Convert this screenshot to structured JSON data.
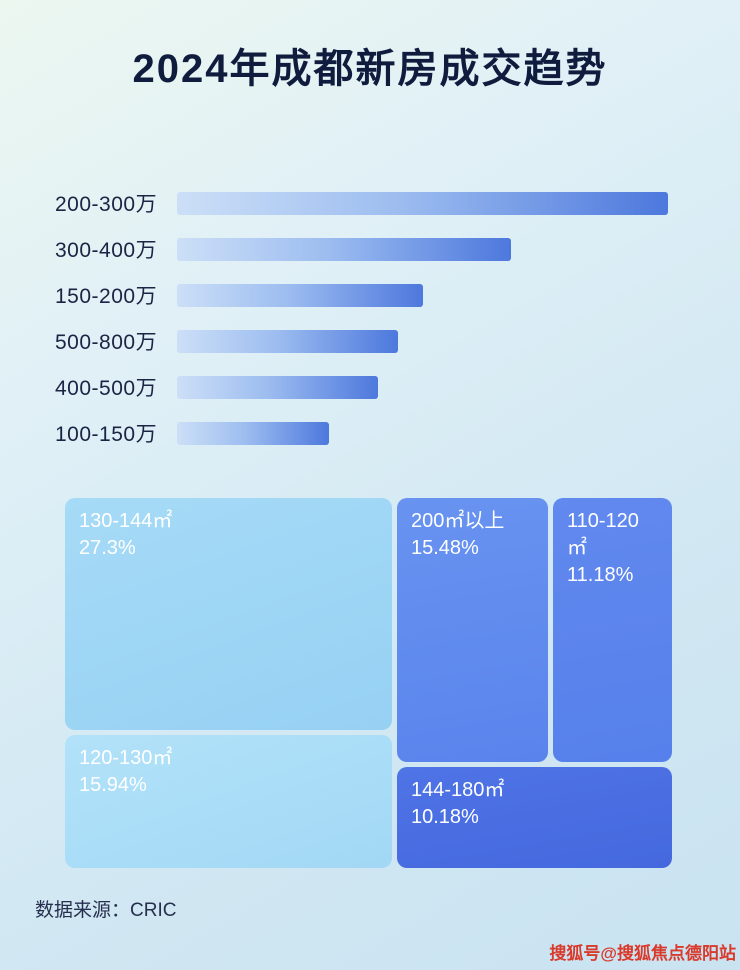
{
  "page": {
    "title": "2024年成都新房成交趋势",
    "source": "数据来源：CRIC",
    "watermark": "搜狐号@搜狐焦点德阳站"
  },
  "colors": {
    "title_text": "#101c3e",
    "bar_gradient_start": "#ccdff7",
    "bar_gradient_end": "#4d78dd",
    "treemap_light_blue": "#a6dbf7",
    "treemap_lighter_blue": "#b2e2f9",
    "treemap_medium_blue": "#6090ef",
    "treemap_dark_blue": "#4a6ee0",
    "watermark_red": "#d93a2b"
  },
  "chart_data": [
    {
      "type": "bar",
      "orientation": "horizontal",
      "title": "2024年成都新房成交趋势",
      "categories": [
        "200-300万",
        "300-400万",
        "150-200万",
        "500-800万",
        "400-500万",
        "100-150万"
      ],
      "values": [
        100,
        68,
        50,
        45,
        41,
        31
      ],
      "value_note": "relative bar lengths in percent of longest bar; no numeric axis shown",
      "xlabel": "",
      "ylabel": "",
      "grid": false,
      "legend": false
    },
    {
      "type": "treemap",
      "title": "",
      "items": [
        {
          "label": "130-144㎡",
          "value": "27.3%"
        },
        {
          "label": "120-130㎡",
          "value": "15.94%"
        },
        {
          "label": "200㎡以上",
          "value": "15.48%"
        },
        {
          "label": "110-120㎡",
          "value": "11.18%"
        },
        {
          "label": "144-180㎡",
          "value": "10.18%"
        }
      ]
    }
  ]
}
